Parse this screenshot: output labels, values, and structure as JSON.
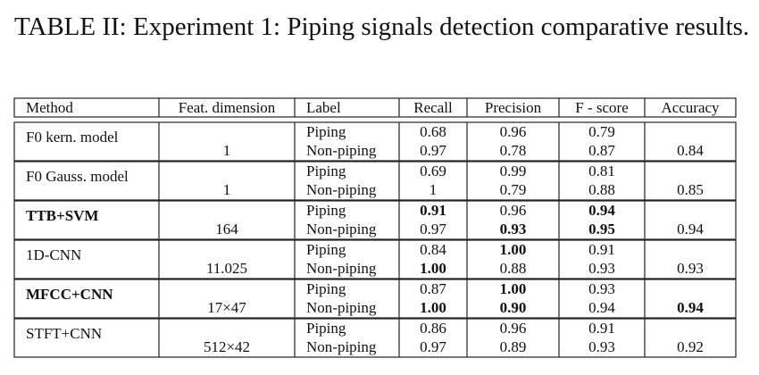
{
  "title": "TABLE II: Experiment 1: Piping signals detection comparative results.",
  "table": {
    "header": [
      "Method",
      "Feat. dimension",
      "Label",
      "Recall",
      "Precision",
      "F - score",
      "Accuracy"
    ],
    "groups": [
      {
        "method": {
          "text": "F0 kern. model",
          "bold": false
        },
        "dimension": "1",
        "rows": [
          [
            {
              "text": "Piping"
            },
            {
              "text": "0.68"
            },
            {
              "text": "0.96"
            },
            {
              "text": "0.79"
            }
          ],
          [
            {
              "text": "Non-piping"
            },
            {
              "text": "0.97"
            },
            {
              "text": "0.78"
            },
            {
              "text": "0.87"
            }
          ]
        ],
        "accuracy": {
          "text": "0.84",
          "bold": false
        }
      },
      {
        "method": {
          "text": "F0 Gauss. model",
          "bold": false
        },
        "dimension": "1",
        "rows": [
          [
            {
              "text": "Piping"
            },
            {
              "text": "0.69"
            },
            {
              "text": "0.99"
            },
            {
              "text": "0.81"
            }
          ],
          [
            {
              "text": "Non-piping"
            },
            {
              "text": "1"
            },
            {
              "text": "0.79"
            },
            {
              "text": "0.88"
            }
          ]
        ],
        "accuracy": {
          "text": "0.85",
          "bold": false
        }
      },
      {
        "method": {
          "text": "TTB+SVM",
          "bold": true
        },
        "dimension": "164",
        "rows": [
          [
            {
              "text": "Piping"
            },
            {
              "text": "0.91",
              "bold": true
            },
            {
              "text": "0.96"
            },
            {
              "text": "0.94",
              "bold": true
            }
          ],
          [
            {
              "text": "Non-piping"
            },
            {
              "text": "0.97"
            },
            {
              "text": "0.93",
              "bold": true
            },
            {
              "text": "0.95",
              "bold": true
            }
          ]
        ],
        "accuracy": {
          "text": "0.94",
          "bold": false
        }
      },
      {
        "method": {
          "text": "1D-CNN",
          "bold": false
        },
        "dimension": "11.025",
        "rows": [
          [
            {
              "text": "Piping"
            },
            {
              "text": "0.84"
            },
            {
              "text": "1.00",
              "bold": true
            },
            {
              "text": "0.91"
            }
          ],
          [
            {
              "text": "Non-piping"
            },
            {
              "text": "1.00",
              "bold": true
            },
            {
              "text": "0.88"
            },
            {
              "text": "0.93"
            }
          ]
        ],
        "accuracy": {
          "text": "0.93",
          "bold": false
        }
      },
      {
        "method": {
          "text": "MFCC+CNN",
          "bold": true
        },
        "dimension": "17×47",
        "rows": [
          [
            {
              "text": "Piping"
            },
            {
              "text": "0.87"
            },
            {
              "text": "1.00",
              "bold": true
            },
            {
              "text": "0.93"
            }
          ],
          [
            {
              "text": "Non-piping"
            },
            {
              "text": "1.00",
              "bold": true
            },
            {
              "text": "0.90",
              "bold": true
            },
            {
              "text": "0.94"
            }
          ]
        ],
        "accuracy": {
          "text": "0.94",
          "bold": true
        }
      },
      {
        "method": {
          "text": "STFT+CNN",
          "bold": false
        },
        "dimension": "512×42",
        "rows": [
          [
            {
              "text": "Piping"
            },
            {
              "text": "0.86"
            },
            {
              "text": "0.96"
            },
            {
              "text": "0.91"
            }
          ],
          [
            {
              "text": "Non-piping"
            },
            {
              "text": "0.97"
            },
            {
              "text": "0.89"
            },
            {
              "text": "0.93"
            }
          ]
        ],
        "accuracy": {
          "text": "0.92",
          "bold": false
        }
      }
    ]
  }
}
